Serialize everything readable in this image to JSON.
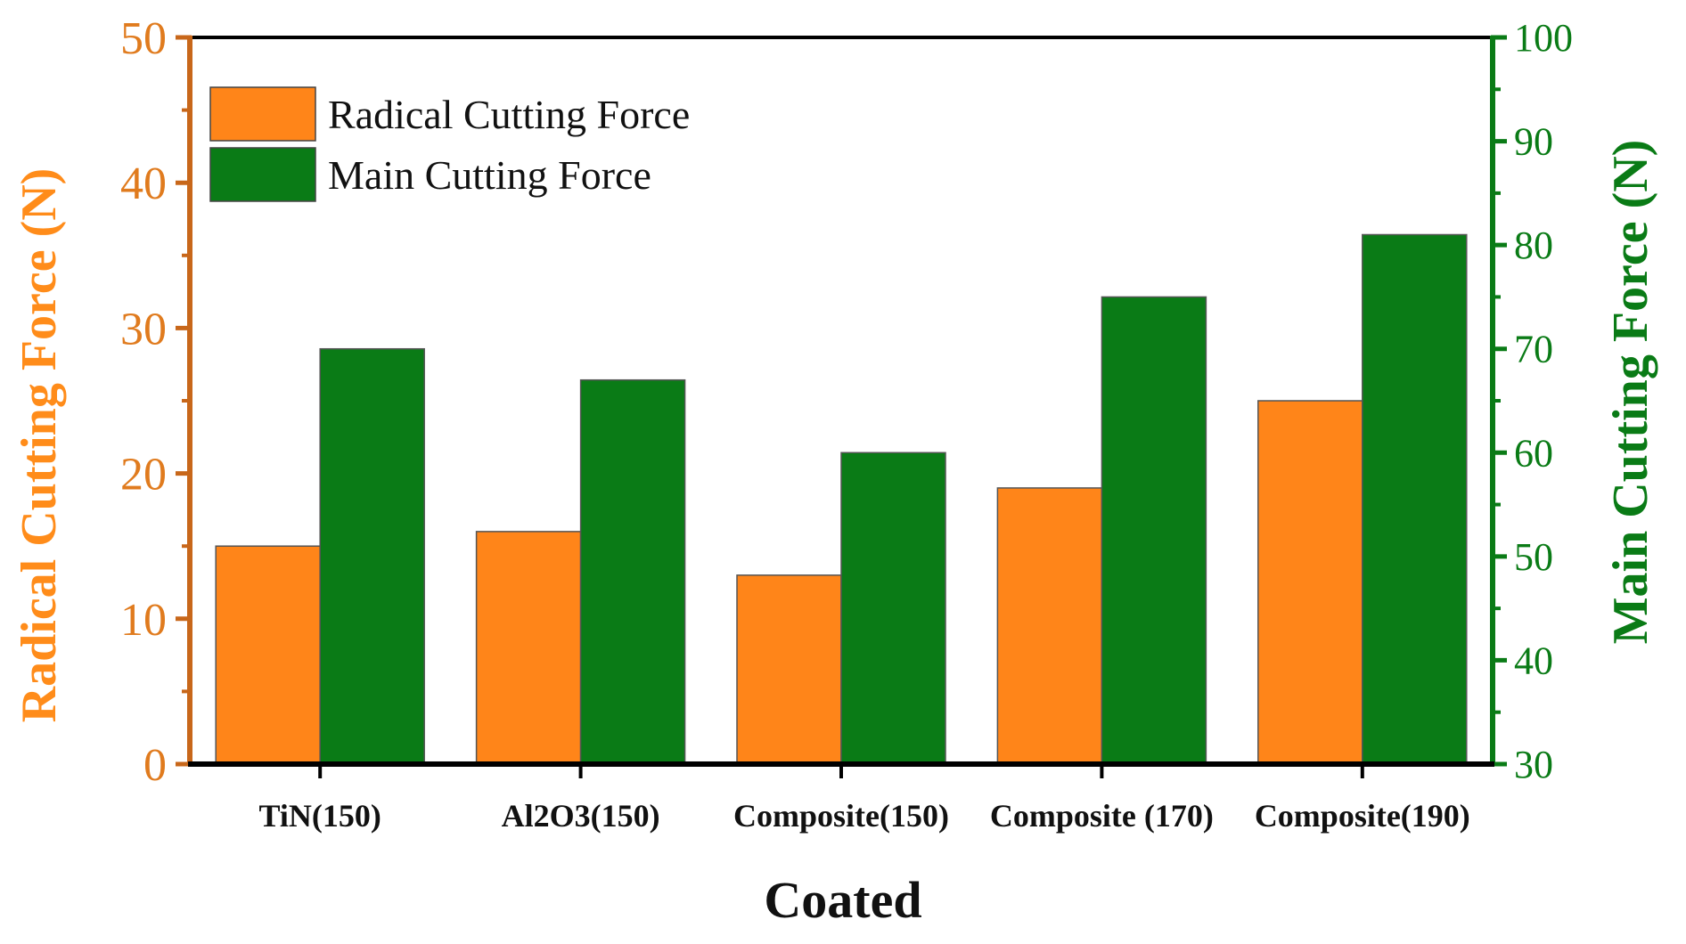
{
  "chart_data": {
    "type": "bar",
    "categories": [
      "TiN(150)",
      "Al2O3(150)",
      "Composite(150)",
      "Composite (170)",
      "Composite(190)"
    ],
    "series": [
      {
        "name": "Radical Cutting Force",
        "axis": "left",
        "color": "#ff8519",
        "values": [
          15,
          16,
          13,
          19,
          25
        ]
      },
      {
        "name": "Main Cutting Force",
        "axis": "right",
        "color": "#0a7b16",
        "values": [
          70,
          67,
          60,
          75,
          81
        ]
      }
    ],
    "xlabel": "Coated",
    "ylabel_left": "Radical Cutting Force (N)",
    "ylabel_right": "Main Cutting Force (N)",
    "ylim_left": [
      0,
      50
    ],
    "ylim_right": [
      30,
      100
    ],
    "yticks_left": [
      0,
      10,
      20,
      30,
      40,
      50
    ],
    "yticks_right": [
      30,
      40,
      50,
      60,
      70,
      80,
      90,
      100
    ],
    "left_axis_color": "#c8671a",
    "left_tick_color": "#e07b1e",
    "left_title_color": "#ff8c1a",
    "right_axis_color": "#0a7b16",
    "legend_position": "top-left",
    "grid": false
  }
}
